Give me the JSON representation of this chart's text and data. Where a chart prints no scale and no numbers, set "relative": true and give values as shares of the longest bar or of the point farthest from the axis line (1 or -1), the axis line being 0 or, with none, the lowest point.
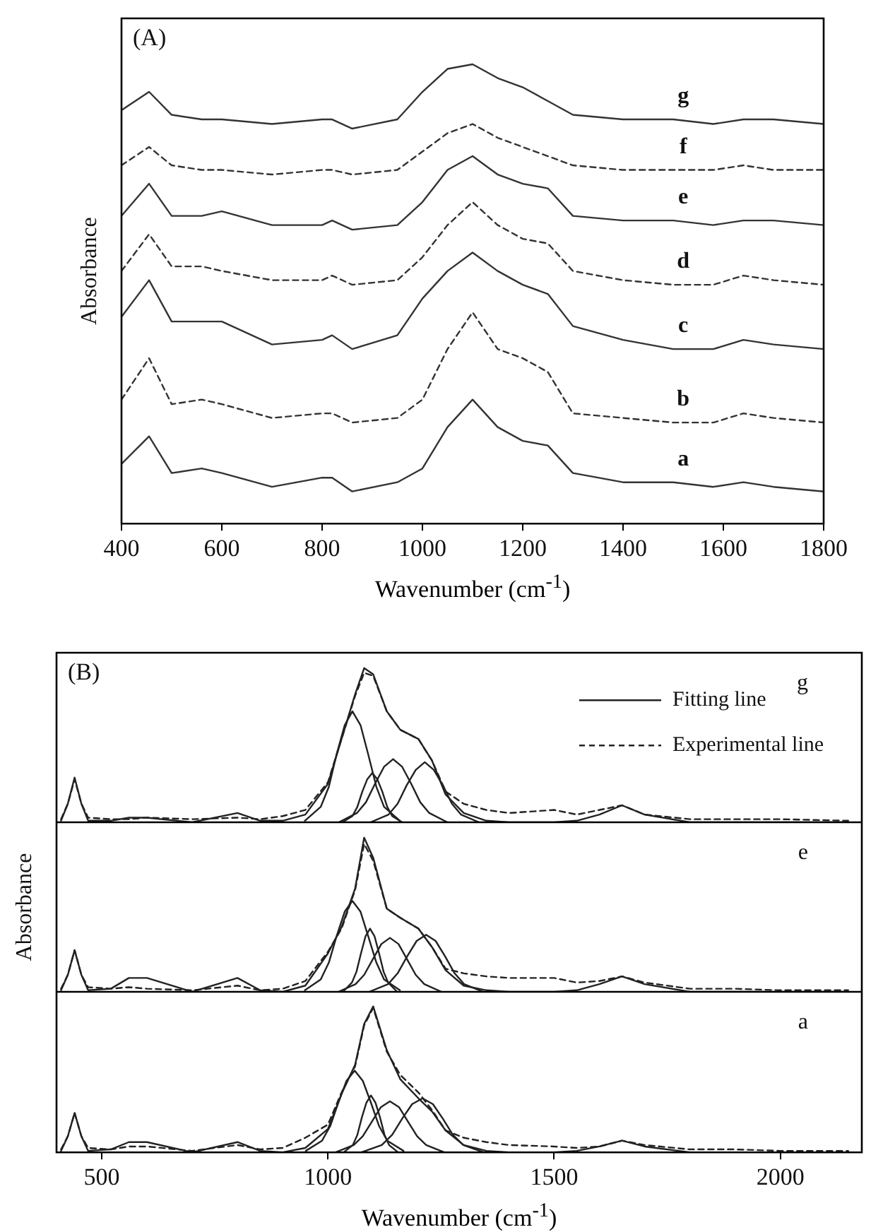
{
  "chart_data": [
    {
      "type": "line",
      "title": "(A)",
      "xlabel": "Wavenumber (cm$^{-1}$)",
      "ylabel": "Absorbance",
      "relative": true,
      "xlim": [
        400,
        1800
      ],
      "xticks": [
        400,
        600,
        800,
        1000,
        1200,
        1400,
        1600,
        1800
      ],
      "tick_labels": "x",
      "legend": false,
      "marker": "none",
      "x": [
        400,
        455,
        500,
        560,
        600,
        700,
        800,
        820,
        860,
        950,
        1000,
        1050,
        1100,
        1150,
        1200,
        1250,
        1300,
        1400,
        1500,
        1580,
        1640,
        1700,
        1800
      ],
      "series": [
        {
          "name": "g",
          "color": "#333333",
          "line_style": "solid",
          "values": [
            0.9,
            0.94,
            0.89,
            0.88,
            0.88,
            0.87,
            0.88,
            0.88,
            0.86,
            0.88,
            0.94,
            0.99,
            1.0,
            0.97,
            0.95,
            0.92,
            0.89,
            0.88,
            0.88,
            0.87,
            0.88,
            0.88,
            0.87
          ]
        },
        {
          "name": "f",
          "color": "#333333",
          "line_style": "dashed",
          "values": [
            0.78,
            0.82,
            0.78,
            0.77,
            0.77,
            0.76,
            0.77,
            0.77,
            0.76,
            0.77,
            0.81,
            0.85,
            0.87,
            0.84,
            0.82,
            0.8,
            0.78,
            0.77,
            0.77,
            0.77,
            0.78,
            0.77,
            0.77
          ]
        },
        {
          "name": "e",
          "color": "#333333",
          "line_style": "solid",
          "values": [
            0.67,
            0.74,
            0.67,
            0.67,
            0.68,
            0.65,
            0.65,
            0.66,
            0.64,
            0.65,
            0.7,
            0.77,
            0.8,
            0.76,
            0.74,
            0.73,
            0.67,
            0.66,
            0.66,
            0.65,
            0.66,
            0.66,
            0.65
          ]
        },
        {
          "name": "d",
          "color": "#333333",
          "line_style": "dashed",
          "values": [
            0.55,
            0.63,
            0.56,
            0.56,
            0.55,
            0.53,
            0.53,
            0.54,
            0.52,
            0.53,
            0.58,
            0.65,
            0.7,
            0.65,
            0.62,
            0.61,
            0.55,
            0.53,
            0.52,
            0.52,
            0.54,
            0.53,
            0.52
          ]
        },
        {
          "name": "c",
          "color": "#333333",
          "line_style": "solid",
          "values": [
            0.45,
            0.53,
            0.44,
            0.44,
            0.44,
            0.39,
            0.4,
            0.41,
            0.38,
            0.41,
            0.49,
            0.55,
            0.59,
            0.55,
            0.52,
            0.5,
            0.43,
            0.4,
            0.38,
            0.38,
            0.4,
            0.39,
            0.38
          ]
        },
        {
          "name": "b",
          "color": "#333333",
          "line_style": "dashed",
          "values": [
            0.27,
            0.36,
            0.26,
            0.27,
            0.26,
            0.23,
            0.24,
            0.24,
            0.22,
            0.23,
            0.27,
            0.38,
            0.46,
            0.38,
            0.36,
            0.33,
            0.24,
            0.23,
            0.22,
            0.22,
            0.24,
            0.23,
            0.22
          ]
        },
        {
          "name": "a",
          "color": "#333333",
          "line_style": "solid",
          "values": [
            0.13,
            0.19,
            0.11,
            0.12,
            0.11,
            0.08,
            0.1,
            0.1,
            0.07,
            0.09,
            0.12,
            0.21,
            0.27,
            0.21,
            0.18,
            0.17,
            0.11,
            0.09,
            0.09,
            0.08,
            0.09,
            0.08,
            0.07
          ]
        }
      ]
    },
    {
      "type": "line",
      "title": "(B)",
      "relative": true,
      "xlim": [
        400,
        2180
      ],
      "xticks": [
        500,
        1000,
        1500,
        2000
      ],
      "tick_labels": false,
      "legend": "right",
      "marker": "none",
      "annotations": [
        "g"
      ],
      "x": [
        410,
        425,
        440,
        455,
        470,
        520,
        560,
        600,
        700,
        800,
        850,
        900,
        950,
        1000,
        1030,
        1060,
        1080,
        1100,
        1130,
        1160,
        1200,
        1230,
        1260,
        1300,
        1350,
        1400,
        1500,
        1550,
        1600,
        1650,
        1700,
        1800,
        1900,
        2000,
        2150
      ],
      "series": [
        {
          "name": "Fitting line",
          "color": "#222222",
          "line_style": "solid",
          "values": [
            0.01,
            0.12,
            0.29,
            0.12,
            0.01,
            0.01,
            0.03,
            0.03,
            0.0,
            0.06,
            0.01,
            0.01,
            0.05,
            0.25,
            0.54,
            0.83,
            1.0,
            0.96,
            0.72,
            0.6,
            0.54,
            0.4,
            0.18,
            0.06,
            0.01,
            0.0,
            0.0,
            0.01,
            0.05,
            0.11,
            0.05,
            0.0,
            0.0,
            0.0,
            0.0
          ]
        },
        {
          "name": "Experimental line",
          "color": "#222222",
          "line_style": "dashed",
          "values": [
            0.02,
            0.12,
            0.28,
            0.12,
            0.03,
            0.02,
            0.02,
            0.03,
            0.02,
            0.03,
            0.02,
            0.04,
            0.08,
            0.26,
            0.54,
            0.82,
            0.97,
            0.95,
            0.72,
            0.6,
            0.54,
            0.4,
            0.2,
            0.12,
            0.08,
            0.06,
            0.08,
            0.05,
            0.08,
            0.11,
            0.05,
            0.02,
            0.02,
            0.02,
            0.01
          ]
        },
        {
          "color": "#222222",
          "line_style": "solid",
          "x": [
            949,
            984,
            1002,
            1019,
            1037,
            1054,
            1072,
            1089,
            1107,
            1124,
            1159
          ],
          "values": [
            0.01,
            0.1,
            0.23,
            0.44,
            0.63,
            0.72,
            0.63,
            0.44,
            0.23,
            0.1,
            0.01
          ]
        },
        {
          "color": "#222222",
          "line_style": "solid",
          "x": [
            1032,
            1054,
            1065,
            1076,
            1087,
            1098,
            1109,
            1120,
            1131,
            1142,
            1164
          ],
          "values": [
            0,
            0.04,
            0.1,
            0.2,
            0.28,
            0.32,
            0.28,
            0.2,
            0.1,
            0.04,
            0
          ]
        },
        {
          "color": "#222222",
          "line_style": "solid",
          "x": [
            1024,
            1064,
            1084,
            1104,
            1124,
            1144,
            1164,
            1184,
            1204,
            1224,
            1264
          ],
          "values": [
            0,
            0.06,
            0.13,
            0.25,
            0.36,
            0.41,
            0.36,
            0.25,
            0.13,
            0.06,
            0
          ]
        },
        {
          "color": "#222222",
          "line_style": "solid",
          "x": [
            1094,
            1134,
            1154,
            1174,
            1194,
            1214,
            1234,
            1254,
            1274,
            1294,
            1334
          ],
          "values": [
            0,
            0.05,
            0.12,
            0.24,
            0.34,
            0.39,
            0.34,
            0.24,
            0.12,
            0.05,
            0
          ]
        }
      ]
    },
    {
      "type": "line",
      "ylabel": "Absorbance",
      "relative": true,
      "xlim": [
        400,
        2180
      ],
      "xticks": [
        500,
        1000,
        1500,
        2000
      ],
      "tick_labels": false,
      "legend": false,
      "marker": "none",
      "annotations": [
        "e"
      ],
      "x": [
        410,
        425,
        440,
        455,
        470,
        520,
        560,
        600,
        700,
        800,
        850,
        900,
        950,
        1000,
        1030,
        1060,
        1080,
        1100,
        1130,
        1160,
        1200,
        1230,
        1260,
        1300,
        1350,
        1400,
        1500,
        1550,
        1600,
        1650,
        1700,
        1800,
        1900,
        2000,
        2150
      ],
      "series": [
        {
          "color": "#222222",
          "line_style": "solid",
          "values": [
            0.01,
            0.11,
            0.27,
            0.11,
            0.01,
            0.02,
            0.09,
            0.09,
            0.0,
            0.09,
            0.01,
            0.0,
            0.04,
            0.25,
            0.42,
            0.67,
            1.0,
            0.87,
            0.54,
            0.48,
            0.41,
            0.29,
            0.14,
            0.04,
            0.01,
            0.0,
            0.0,
            0.01,
            0.05,
            0.1,
            0.05,
            0.0,
            0.0,
            0.0,
            0.0
          ]
        },
        {
          "color": "#222222",
          "line_style": "dashed",
          "values": [
            0.02,
            0.11,
            0.27,
            0.11,
            0.03,
            0.02,
            0.03,
            0.02,
            0.01,
            0.04,
            0.01,
            0.02,
            0.07,
            0.26,
            0.41,
            0.66,
            0.96,
            0.85,
            0.54,
            0.48,
            0.41,
            0.29,
            0.15,
            0.12,
            0.1,
            0.09,
            0.09,
            0.06,
            0.07,
            0.1,
            0.06,
            0.02,
            0.02,
            0.01,
            0.01
          ]
        },
        {
          "color": "#222222",
          "line_style": "solid",
          "x": [
            949,
            984,
            1002,
            1019,
            1037,
            1054,
            1072,
            1089,
            1107,
            1124,
            1159
          ],
          "values": [
            0.01,
            0.08,
            0.19,
            0.36,
            0.52,
            0.59,
            0.52,
            0.36,
            0.19,
            0.08,
            0.01
          ]
        },
        {
          "color": "#222222",
          "line_style": "solid",
          "x": [
            1033,
            1053,
            1063,
            1073,
            1083,
            1093,
            1103,
            1113,
            1123,
            1133,
            1153
          ],
          "values": [
            0,
            0.06,
            0.13,
            0.25,
            0.36,
            0.41,
            0.36,
            0.25,
            0.13,
            0.06,
            0
          ]
        },
        {
          "color": "#222222",
          "line_style": "solid",
          "x": [
            1023,
            1061,
            1080,
            1099,
            1118,
            1137,
            1156,
            1175,
            1194,
            1213,
            1251
          ],
          "values": [
            0,
            0.05,
            0.11,
            0.21,
            0.31,
            0.35,
            0.31,
            0.21,
            0.11,
            0.05,
            0
          ]
        },
        {
          "color": "#222222",
          "line_style": "solid",
          "x": [
            1091,
            1133,
            1154,
            1175,
            1196,
            1217,
            1238,
            1259,
            1280,
            1301,
            1343
          ],
          "values": [
            0,
            0.05,
            0.12,
            0.23,
            0.33,
            0.37,
            0.33,
            0.23,
            0.12,
            0.05,
            0
          ]
        }
      ]
    },
    {
      "type": "line",
      "xlabel": "Wavenumber (cm$^{-1}$)",
      "relative": true,
      "xlim": [
        400,
        2180
      ],
      "xticks": [
        500,
        1000,
        1500,
        2000
      ],
      "tick_labels": "x",
      "legend": false,
      "marker": "none",
      "annotations": [
        "a"
      ],
      "x": [
        410,
        425,
        440,
        455,
        470,
        520,
        560,
        600,
        700,
        800,
        850,
        900,
        950,
        1000,
        1030,
        1060,
        1080,
        1100,
        1130,
        1160,
        1200,
        1230,
        1260,
        1300,
        1350,
        1400,
        1500,
        1550,
        1600,
        1650,
        1700,
        1800,
        1900,
        2000,
        2150
      ],
      "series": [
        {
          "color": "#222222",
          "line_style": "solid",
          "values": [
            0.01,
            0.11,
            0.27,
            0.11,
            0.01,
            0.02,
            0.07,
            0.07,
            0.0,
            0.07,
            0.01,
            0.0,
            0.03,
            0.16,
            0.4,
            0.6,
            0.88,
            1.0,
            0.7,
            0.5,
            0.37,
            0.28,
            0.15,
            0.05,
            0.01,
            0.0,
            0.0,
            0.01,
            0.04,
            0.08,
            0.04,
            0.0,
            0.0,
            0.0,
            0.0
          ]
        },
        {
          "color": "#222222",
          "line_style": "dashed",
          "values": [
            0.02,
            0.11,
            0.27,
            0.11,
            0.03,
            0.02,
            0.04,
            0.04,
            0.01,
            0.05,
            0.02,
            0.03,
            0.1,
            0.19,
            0.41,
            0.59,
            0.87,
            0.99,
            0.69,
            0.53,
            0.41,
            0.29,
            0.15,
            0.1,
            0.07,
            0.05,
            0.04,
            0.03,
            0.04,
            0.08,
            0.05,
            0.02,
            0.02,
            0.01,
            0.01
          ]
        },
        {
          "color": "#222222",
          "line_style": "solid",
          "x": [
            951,
            987,
            1005,
            1023,
            1041,
            1059,
            1077,
            1095,
            1113,
            1131,
            1167
          ],
          "values": [
            0.01,
            0.08,
            0.18,
            0.34,
            0.49,
            0.56,
            0.49,
            0.34,
            0.18,
            0.08,
            0.01
          ]
        },
        {
          "color": "#222222",
          "line_style": "solid",
          "x": [
            1035,
            1055,
            1065,
            1075,
            1085,
            1095,
            1105,
            1115,
            1125,
            1135,
            1155
          ],
          "values": [
            0,
            0.05,
            0.12,
            0.24,
            0.34,
            0.39,
            0.34,
            0.24,
            0.12,
            0.05,
            0
          ]
        },
        {
          "color": "#222222",
          "line_style": "solid",
          "x": [
            1017,
            1057,
            1077,
            1097,
            1117,
            1137,
            1157,
            1177,
            1197,
            1217,
            1257
          ],
          "values": [
            0,
            0.05,
            0.11,
            0.21,
            0.31,
            0.35,
            0.31,
            0.21,
            0.11,
            0.05,
            0
          ]
        },
        {
          "color": "#222222",
          "line_style": "solid",
          "x": [
            1074,
            1119,
            1142,
            1164,
            1186,
            1209,
            1232,
            1254,
            1276,
            1299,
            1344
          ],
          "values": [
            0,
            0.05,
            0.12,
            0.23,
            0.33,
            0.37,
            0.33,
            0.23,
            0.12,
            0.05,
            0
          ]
        }
      ]
    }
  ]
}
